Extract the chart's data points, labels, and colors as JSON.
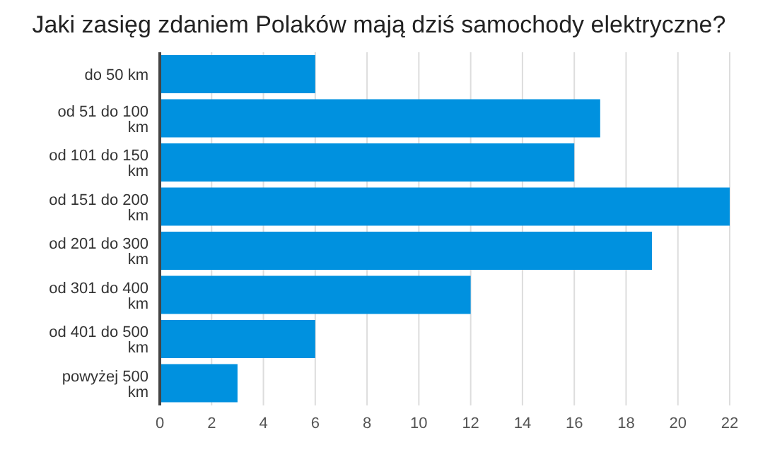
{
  "chart_data": {
    "type": "bar",
    "orientation": "horizontal",
    "title": "Jaki zasięg zdaniem Polaków mają dziś samochody elektryczne?",
    "categories": [
      "do 50 km",
      "od 51 do 100 km",
      "od 101 do 150 km",
      "od 151 do 200 km",
      "od 201 do 300 km",
      "od 301 do 400 km",
      "od 401 do 500 km",
      "powyżej 500 km"
    ],
    "values": [
      6,
      17,
      16,
      22,
      19,
      12,
      6,
      3
    ],
    "color": "#0091df",
    "xlim": [
      0,
      22
    ],
    "xticks": [
      0,
      2,
      4,
      6,
      8,
      10,
      12,
      14,
      16,
      18,
      20,
      22
    ],
    "grid": "x"
  }
}
